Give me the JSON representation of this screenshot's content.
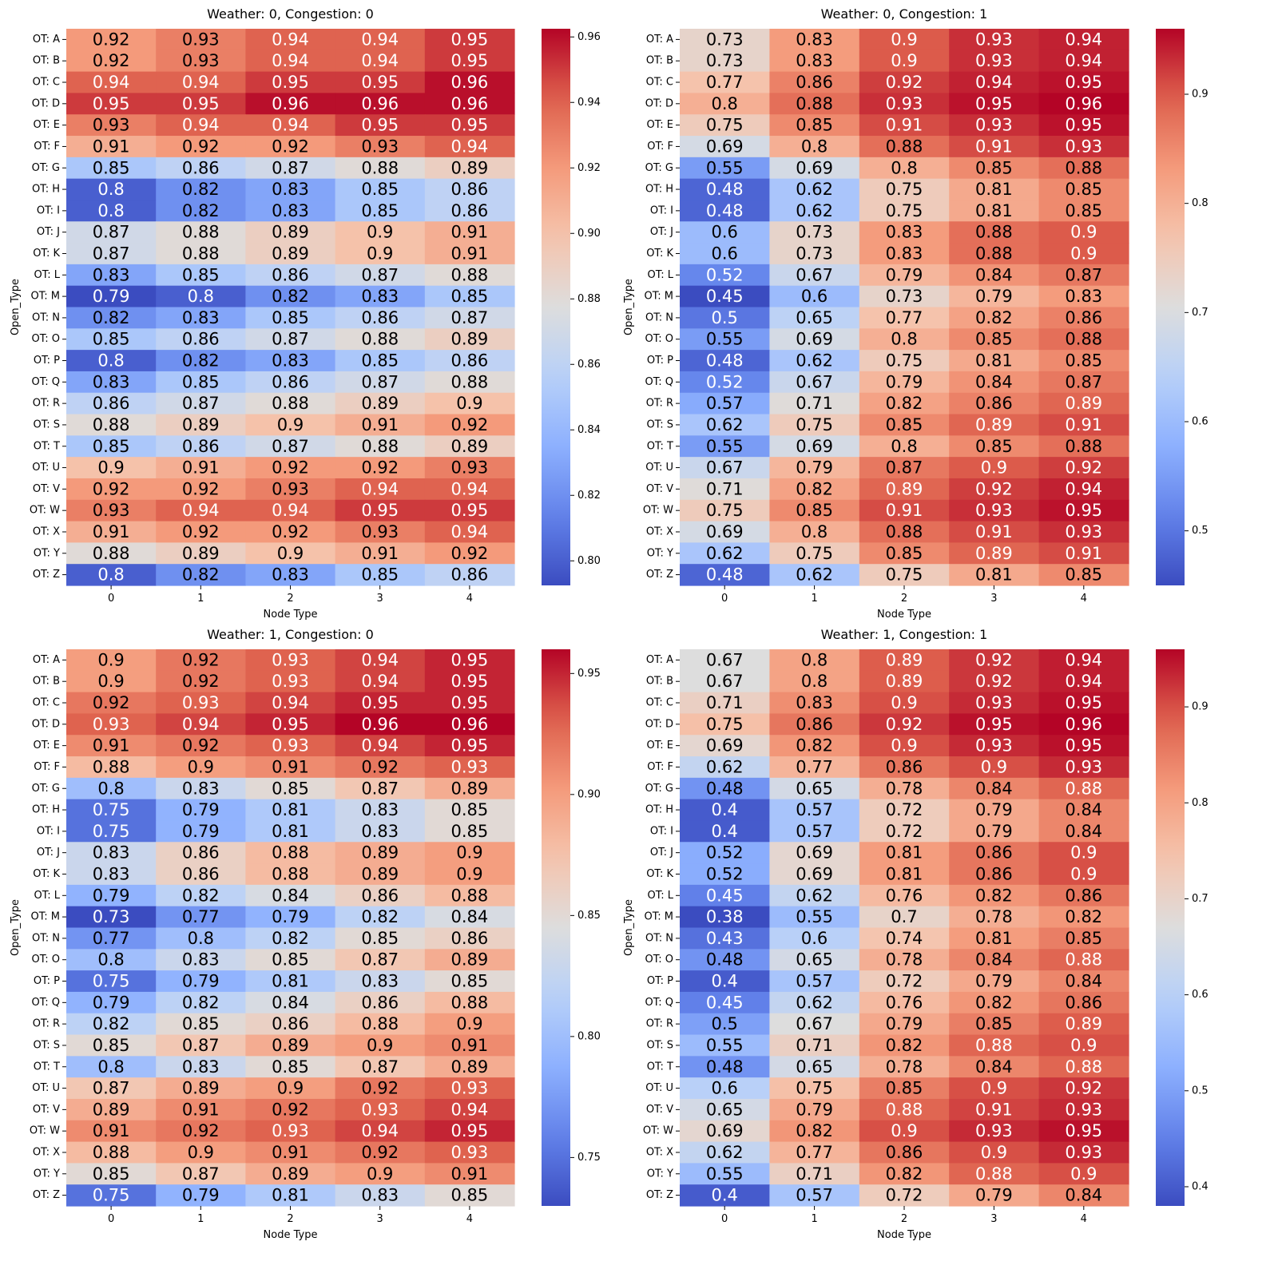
{
  "chart_data": [
    {
      "type": "heatmap",
      "title": "Weather: 0, Congestion: 0",
      "xlabel": "Node Type",
      "ylabel": "Open_Type",
      "x_categories": [
        "0",
        "1",
        "2",
        "3",
        "4"
      ],
      "y_categories": [
        "OT: A",
        "OT: B",
        "OT: C",
        "OT: D",
        "OT: E",
        "OT: F",
        "OT: G",
        "OT: H",
        "OT: I",
        "OT: J",
        "OT: K",
        "OT: L",
        "OT: M",
        "OT: N",
        "OT: O",
        "OT: P",
        "OT: Q",
        "OT: R",
        "OT: S",
        "OT: T",
        "OT: U",
        "OT: V",
        "OT: W",
        "OT: X",
        "OT: Y",
        "OT: Z"
      ],
      "values": [
        [
          0.92,
          0.93,
          0.94,
          0.94,
          0.95
        ],
        [
          0.92,
          0.93,
          0.94,
          0.94,
          0.95
        ],
        [
          0.94,
          0.94,
          0.95,
          0.95,
          0.96
        ],
        [
          0.95,
          0.95,
          0.96,
          0.96,
          0.96
        ],
        [
          0.93,
          0.94,
          0.94,
          0.95,
          0.95
        ],
        [
          0.91,
          0.92,
          0.92,
          0.93,
          0.94
        ],
        [
          0.85,
          0.86,
          0.87,
          0.88,
          0.89
        ],
        [
          0.8,
          0.82,
          0.83,
          0.85,
          0.86
        ],
        [
          0.8,
          0.82,
          0.83,
          0.85,
          0.86
        ],
        [
          0.87,
          0.88,
          0.89,
          0.9,
          0.91
        ],
        [
          0.87,
          0.88,
          0.89,
          0.9,
          0.91
        ],
        [
          0.83,
          0.85,
          0.86,
          0.87,
          0.88
        ],
        [
          0.79,
          0.8,
          0.82,
          0.83,
          0.85
        ],
        [
          0.82,
          0.83,
          0.85,
          0.86,
          0.87
        ],
        [
          0.85,
          0.86,
          0.87,
          0.88,
          0.89
        ],
        [
          0.8,
          0.82,
          0.83,
          0.85,
          0.86
        ],
        [
          0.83,
          0.85,
          0.86,
          0.87,
          0.88
        ],
        [
          0.86,
          0.87,
          0.88,
          0.89,
          0.9
        ],
        [
          0.88,
          0.89,
          0.9,
          0.91,
          0.92
        ],
        [
          0.85,
          0.86,
          0.87,
          0.88,
          0.89
        ],
        [
          0.9,
          0.91,
          0.92,
          0.92,
          0.93
        ],
        [
          0.92,
          0.92,
          0.93,
          0.94,
          0.94
        ],
        [
          0.93,
          0.94,
          0.94,
          0.95,
          0.95
        ],
        [
          0.91,
          0.92,
          0.92,
          0.93,
          0.94
        ],
        [
          0.88,
          0.89,
          0.9,
          0.91,
          0.92
        ],
        [
          0.8,
          0.82,
          0.83,
          0.85,
          0.86
        ]
      ],
      "colormap": "coolwarm",
      "vmin": 0.7925,
      "vmax": 0.9625,
      "colorbar_ticks": [
        0.8,
        0.82,
        0.84,
        0.86,
        0.88,
        0.9,
        0.92,
        0.94,
        0.96
      ],
      "colorbar_tick_labels": [
        "0.80",
        "0.82",
        "0.84",
        "0.86",
        "0.88",
        "0.90",
        "0.92",
        "0.94",
        "0.96"
      ]
    },
    {
      "type": "heatmap",
      "title": "Weather: 0, Congestion: 1",
      "xlabel": "Node Type",
      "ylabel": "Open_Type",
      "x_categories": [
        "0",
        "1",
        "2",
        "3",
        "4"
      ],
      "y_categories": [
        "OT: A",
        "OT: B",
        "OT: C",
        "OT: D",
        "OT: E",
        "OT: F",
        "OT: G",
        "OT: H",
        "OT: I",
        "OT: J",
        "OT: K",
        "OT: L",
        "OT: M",
        "OT: N",
        "OT: O",
        "OT: P",
        "OT: Q",
        "OT: R",
        "OT: S",
        "OT: T",
        "OT: U",
        "OT: V",
        "OT: W",
        "OT: X",
        "OT: Y",
        "OT: Z"
      ],
      "values": [
        [
          0.73,
          0.83,
          0.9,
          0.93,
          0.94
        ],
        [
          0.73,
          0.83,
          0.9,
          0.93,
          0.94
        ],
        [
          0.77,
          0.86,
          0.92,
          0.94,
          0.95
        ],
        [
          0.8,
          0.88,
          0.93,
          0.95,
          0.96
        ],
        [
          0.75,
          0.85,
          0.91,
          0.93,
          0.95
        ],
        [
          0.69,
          0.8,
          0.88,
          0.91,
          0.93
        ],
        [
          0.55,
          0.69,
          0.8,
          0.85,
          0.88
        ],
        [
          0.48,
          0.62,
          0.75,
          0.81,
          0.85
        ],
        [
          0.48,
          0.62,
          0.75,
          0.81,
          0.85
        ],
        [
          0.6,
          0.73,
          0.83,
          0.88,
          0.9
        ],
        [
          0.6,
          0.73,
          0.83,
          0.88,
          0.9
        ],
        [
          0.52,
          0.67,
          0.79,
          0.84,
          0.87
        ],
        [
          0.45,
          0.6,
          0.73,
          0.79,
          0.83
        ],
        [
          0.5,
          0.65,
          0.77,
          0.82,
          0.86
        ],
        [
          0.55,
          0.69,
          0.8,
          0.85,
          0.88
        ],
        [
          0.48,
          0.62,
          0.75,
          0.81,
          0.85
        ],
        [
          0.52,
          0.67,
          0.79,
          0.84,
          0.87
        ],
        [
          0.57,
          0.71,
          0.82,
          0.86,
          0.89
        ],
        [
          0.62,
          0.75,
          0.85,
          0.89,
          0.91
        ],
        [
          0.55,
          0.69,
          0.8,
          0.85,
          0.88
        ],
        [
          0.67,
          0.79,
          0.87,
          0.9,
          0.92
        ],
        [
          0.71,
          0.82,
          0.89,
          0.92,
          0.94
        ],
        [
          0.75,
          0.85,
          0.91,
          0.93,
          0.95
        ],
        [
          0.69,
          0.8,
          0.88,
          0.91,
          0.93
        ],
        [
          0.62,
          0.75,
          0.85,
          0.89,
          0.91
        ],
        [
          0.48,
          0.62,
          0.75,
          0.81,
          0.85
        ]
      ],
      "colormap": "coolwarm",
      "vmin": 0.45,
      "vmax": 0.96,
      "colorbar_ticks": [
        0.5,
        0.6,
        0.7,
        0.8,
        0.9
      ],
      "colorbar_tick_labels": [
        "0.5",
        "0.6",
        "0.7",
        "0.8",
        "0.9"
      ]
    },
    {
      "type": "heatmap",
      "title": "Weather: 1, Congestion: 0",
      "xlabel": "Node Type",
      "ylabel": "Open_Type",
      "x_categories": [
        "0",
        "1",
        "2",
        "3",
        "4"
      ],
      "y_categories": [
        "OT: A",
        "OT: B",
        "OT: C",
        "OT: D",
        "OT: E",
        "OT: F",
        "OT: G",
        "OT: H",
        "OT: I",
        "OT: J",
        "OT: K",
        "OT: L",
        "OT: M",
        "OT: N",
        "OT: O",
        "OT: P",
        "OT: Q",
        "OT: R",
        "OT: S",
        "OT: T",
        "OT: U",
        "OT: V",
        "OT: W",
        "OT: X",
        "OT: Y",
        "OT: Z"
      ],
      "values": [
        [
          0.9,
          0.92,
          0.93,
          0.94,
          0.95
        ],
        [
          0.9,
          0.92,
          0.93,
          0.94,
          0.95
        ],
        [
          0.92,
          0.93,
          0.94,
          0.95,
          0.95
        ],
        [
          0.93,
          0.94,
          0.95,
          0.96,
          0.96
        ],
        [
          0.91,
          0.92,
          0.93,
          0.94,
          0.95
        ],
        [
          0.88,
          0.9,
          0.91,
          0.92,
          0.93
        ],
        [
          0.8,
          0.83,
          0.85,
          0.87,
          0.89
        ],
        [
          0.75,
          0.79,
          0.81,
          0.83,
          0.85
        ],
        [
          0.75,
          0.79,
          0.81,
          0.83,
          0.85
        ],
        [
          0.83,
          0.86,
          0.88,
          0.89,
          0.9
        ],
        [
          0.83,
          0.86,
          0.88,
          0.89,
          0.9
        ],
        [
          0.79,
          0.82,
          0.84,
          0.86,
          0.88
        ],
        [
          0.73,
          0.77,
          0.79,
          0.82,
          0.84
        ],
        [
          0.77,
          0.8,
          0.82,
          0.85,
          0.86
        ],
        [
          0.8,
          0.83,
          0.85,
          0.87,
          0.89
        ],
        [
          0.75,
          0.79,
          0.81,
          0.83,
          0.85
        ],
        [
          0.79,
          0.82,
          0.84,
          0.86,
          0.88
        ],
        [
          0.82,
          0.85,
          0.86,
          0.88,
          0.9
        ],
        [
          0.85,
          0.87,
          0.89,
          0.9,
          0.91
        ],
        [
          0.8,
          0.83,
          0.85,
          0.87,
          0.89
        ],
        [
          0.87,
          0.89,
          0.9,
          0.92,
          0.93
        ],
        [
          0.89,
          0.91,
          0.92,
          0.93,
          0.94
        ],
        [
          0.91,
          0.92,
          0.93,
          0.94,
          0.95
        ],
        [
          0.88,
          0.9,
          0.91,
          0.92,
          0.93
        ],
        [
          0.85,
          0.87,
          0.89,
          0.9,
          0.91
        ],
        [
          0.75,
          0.79,
          0.81,
          0.83,
          0.85
        ]
      ],
      "colormap": "coolwarm",
      "vmin": 0.73,
      "vmax": 0.96,
      "colorbar_ticks": [
        0.75,
        0.8,
        0.85,
        0.9,
        0.95
      ],
      "colorbar_tick_labels": [
        "0.75",
        "0.80",
        "0.85",
        "0.90",
        "0.95"
      ]
    },
    {
      "type": "heatmap",
      "title": "Weather: 1, Congestion: 1",
      "xlabel": "Node Type",
      "ylabel": "Open_Type",
      "x_categories": [
        "0",
        "1",
        "2",
        "3",
        "4"
      ],
      "y_categories": [
        "OT: A",
        "OT: B",
        "OT: C",
        "OT: D",
        "OT: E",
        "OT: F",
        "OT: G",
        "OT: H",
        "OT: I",
        "OT: J",
        "OT: K",
        "OT: L",
        "OT: M",
        "OT: N",
        "OT: O",
        "OT: P",
        "OT: Q",
        "OT: R",
        "OT: S",
        "OT: T",
        "OT: U",
        "OT: V",
        "OT: W",
        "OT: X",
        "OT: Y",
        "OT: Z"
      ],
      "values": [
        [
          0.67,
          0.8,
          0.89,
          0.92,
          0.94
        ],
        [
          0.67,
          0.8,
          0.89,
          0.92,
          0.94
        ],
        [
          0.71,
          0.83,
          0.9,
          0.93,
          0.95
        ],
        [
          0.75,
          0.86,
          0.92,
          0.95,
          0.96
        ],
        [
          0.69,
          0.82,
          0.9,
          0.93,
          0.95
        ],
        [
          0.62,
          0.77,
          0.86,
          0.9,
          0.93
        ],
        [
          0.48,
          0.65,
          0.78,
          0.84,
          0.88
        ],
        [
          0.4,
          0.57,
          0.72,
          0.79,
          0.84
        ],
        [
          0.4,
          0.57,
          0.72,
          0.79,
          0.84
        ],
        [
          0.52,
          0.69,
          0.81,
          0.86,
          0.9
        ],
        [
          0.52,
          0.69,
          0.81,
          0.86,
          0.9
        ],
        [
          0.45,
          0.62,
          0.76,
          0.82,
          0.86
        ],
        [
          0.38,
          0.55,
          0.7,
          0.78,
          0.82
        ],
        [
          0.43,
          0.6,
          0.74,
          0.81,
          0.85
        ],
        [
          0.48,
          0.65,
          0.78,
          0.84,
          0.88
        ],
        [
          0.4,
          0.57,
          0.72,
          0.79,
          0.84
        ],
        [
          0.45,
          0.62,
          0.76,
          0.82,
          0.86
        ],
        [
          0.5,
          0.67,
          0.79,
          0.85,
          0.89
        ],
        [
          0.55,
          0.71,
          0.82,
          0.88,
          0.9
        ],
        [
          0.48,
          0.65,
          0.78,
          0.84,
          0.88
        ],
        [
          0.6,
          0.75,
          0.85,
          0.9,
          0.92
        ],
        [
          0.65,
          0.79,
          0.88,
          0.91,
          0.93
        ],
        [
          0.69,
          0.82,
          0.9,
          0.93,
          0.95
        ],
        [
          0.62,
          0.77,
          0.86,
          0.9,
          0.93
        ],
        [
          0.55,
          0.71,
          0.82,
          0.88,
          0.9
        ],
        [
          0.4,
          0.57,
          0.72,
          0.79,
          0.84
        ]
      ],
      "colormap": "coolwarm",
      "vmin": 0.38,
      "vmax": 0.96,
      "colorbar_ticks": [
        0.4,
        0.5,
        0.6,
        0.7,
        0.8,
        0.9
      ],
      "colorbar_tick_labels": [
        "0.4",
        "0.5",
        "0.6",
        "0.7",
        "0.8",
        "0.9"
      ]
    }
  ]
}
